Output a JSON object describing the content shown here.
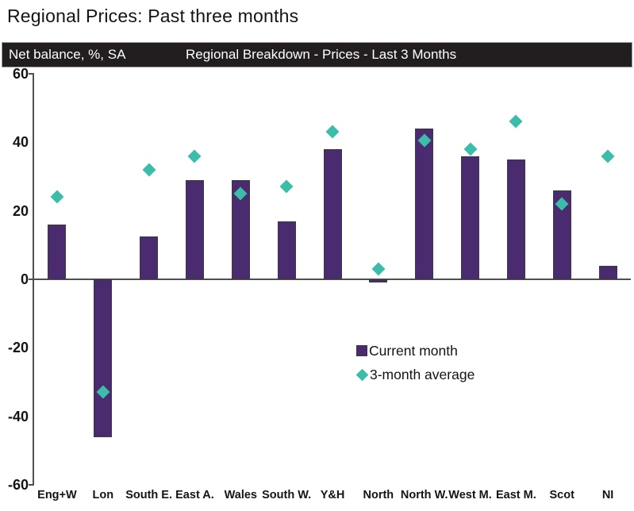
{
  "title": "Regional Prices: Past three months",
  "header": {
    "left_label": "Net balance, %, SA",
    "center_label": "Regional Breakdown - Prices - Last 3 Months"
  },
  "legend": {
    "current_month": "Current month",
    "three_month_average": "3-month average"
  },
  "colors": {
    "bar": "#4b2b6f",
    "bar_border": "#3b3b3b",
    "marker": "#3cbda9",
    "header_bg": "#221e1f",
    "axis": "#4f4f4f"
  },
  "chart_data": {
    "type": "bar",
    "title": "Regional Breakdown - Prices - Last 3 Months",
    "ylabel": "Net balance, %, SA",
    "categories": [
      "Eng+W",
      "Lon",
      "South E.",
      "East A.",
      "Wales",
      "South W.",
      "Y&H",
      "North",
      "North W.",
      "West M.",
      "East M.",
      "Scot",
      "NI"
    ],
    "series": [
      {
        "name": "Current month",
        "mark": "bar",
        "values": [
          16,
          -46,
          12.5,
          29,
          29,
          17,
          38,
          -1,
          44,
          36,
          35,
          26,
          4
        ]
      },
      {
        "name": "3-month average",
        "mark": "diamond",
        "values": [
          24,
          -33,
          32,
          36,
          25,
          27,
          43,
          3,
          40.5,
          38,
          46,
          22,
          36
        ]
      }
    ],
    "ylim": [
      -60,
      60
    ],
    "yticks": [
      60,
      40,
      20,
      0,
      -20,
      -40,
      -60
    ],
    "grid": false,
    "legend_position": "center-right"
  }
}
